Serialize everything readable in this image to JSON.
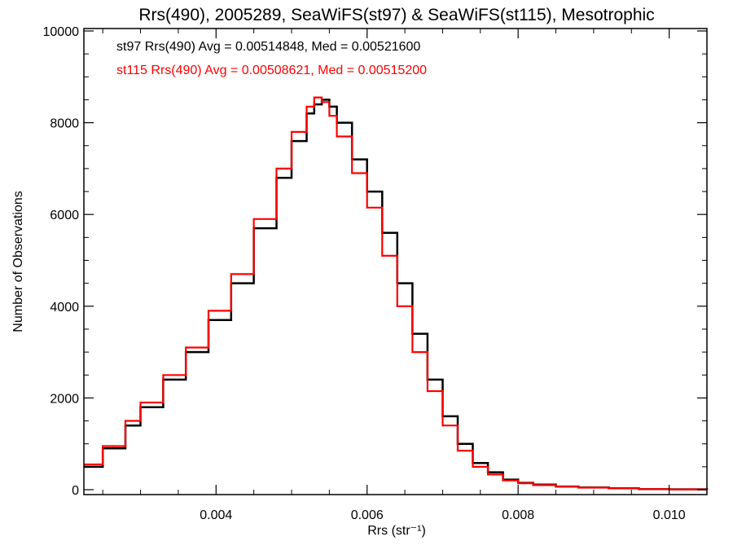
{
  "chart_data": {
    "type": "line",
    "title": "Rrs(490), 2005289, SeaWiFS(st97) & SeaWiFS(st115), Mesotrophic",
    "xlabel": "Rrs (str⁻¹)",
    "ylabel": "Number of Observations",
    "xlim": [
      0.00225,
      0.0105
    ],
    "ylim": [
      0,
      10000
    ],
    "x_ticks": [
      0.004,
      0.006,
      0.008,
      0.01
    ],
    "x_tick_labels": [
      "0.004",
      "0.006",
      "0.008",
      "0.010"
    ],
    "y_ticks": [
      0,
      2000,
      4000,
      6000,
      8000,
      10000
    ],
    "y_tick_labels": [
      "0",
      "2000",
      "4000",
      "6000",
      "8000",
      "10000"
    ],
    "grid": false,
    "legend": "top-left",
    "annotations": [
      {
        "text": "st97 Rrs(490) Avg = 0.00514848, Med = 0.00521600",
        "color": "#000000"
      },
      {
        "text": "st115 Rrs(490) Avg = 0.00508621, Med = 0.00515200",
        "color": "#ff0000"
      }
    ],
    "series": [
      {
        "color": "#000000",
        "x": [
          0.00225,
          0.0025,
          0.0028,
          0.003,
          0.0033,
          0.0036,
          0.0039,
          0.0042,
          0.0045,
          0.0048,
          0.005,
          0.0052,
          0.0053,
          0.0054,
          0.0055,
          0.0056,
          0.0058,
          0.006,
          0.0062,
          0.0064,
          0.0066,
          0.0068,
          0.007,
          0.0072,
          0.0074,
          0.0076,
          0.0078,
          0.008,
          0.0082,
          0.0085,
          0.0088,
          0.0092,
          0.0096,
          0.01,
          0.0105
        ],
        "y": [
          500,
          900,
          1400,
          1800,
          2400,
          3000,
          3700,
          4500,
          5700,
          6800,
          7600,
          8200,
          8400,
          8500,
          8350,
          8000,
          7200,
          6500,
          5600,
          4500,
          3400,
          2400,
          1600,
          1000,
          580,
          380,
          220,
          150,
          110,
          70,
          50,
          30,
          15,
          8,
          5
        ]
      },
      {
        "color": "#ff0000",
        "x": [
          0.00225,
          0.0025,
          0.0028,
          0.003,
          0.0033,
          0.0036,
          0.0039,
          0.0042,
          0.0045,
          0.0048,
          0.005,
          0.0052,
          0.0053,
          0.0054,
          0.0055,
          0.0056,
          0.0058,
          0.006,
          0.0062,
          0.0064,
          0.0066,
          0.0068,
          0.007,
          0.0072,
          0.0074,
          0.0076,
          0.0078,
          0.008,
          0.0082,
          0.0085,
          0.0088,
          0.0092,
          0.0096,
          0.01,
          0.0105
        ],
        "y": [
          550,
          950,
          1500,
          1900,
          2500,
          3100,
          3900,
          4700,
          5900,
          7000,
          7800,
          8350,
          8550,
          8450,
          8150,
          7700,
          6900,
          6150,
          5100,
          4000,
          3000,
          2150,
          1400,
          850,
          500,
          330,
          200,
          140,
          100,
          65,
          45,
          28,
          14,
          7,
          5
        ]
      }
    ]
  }
}
